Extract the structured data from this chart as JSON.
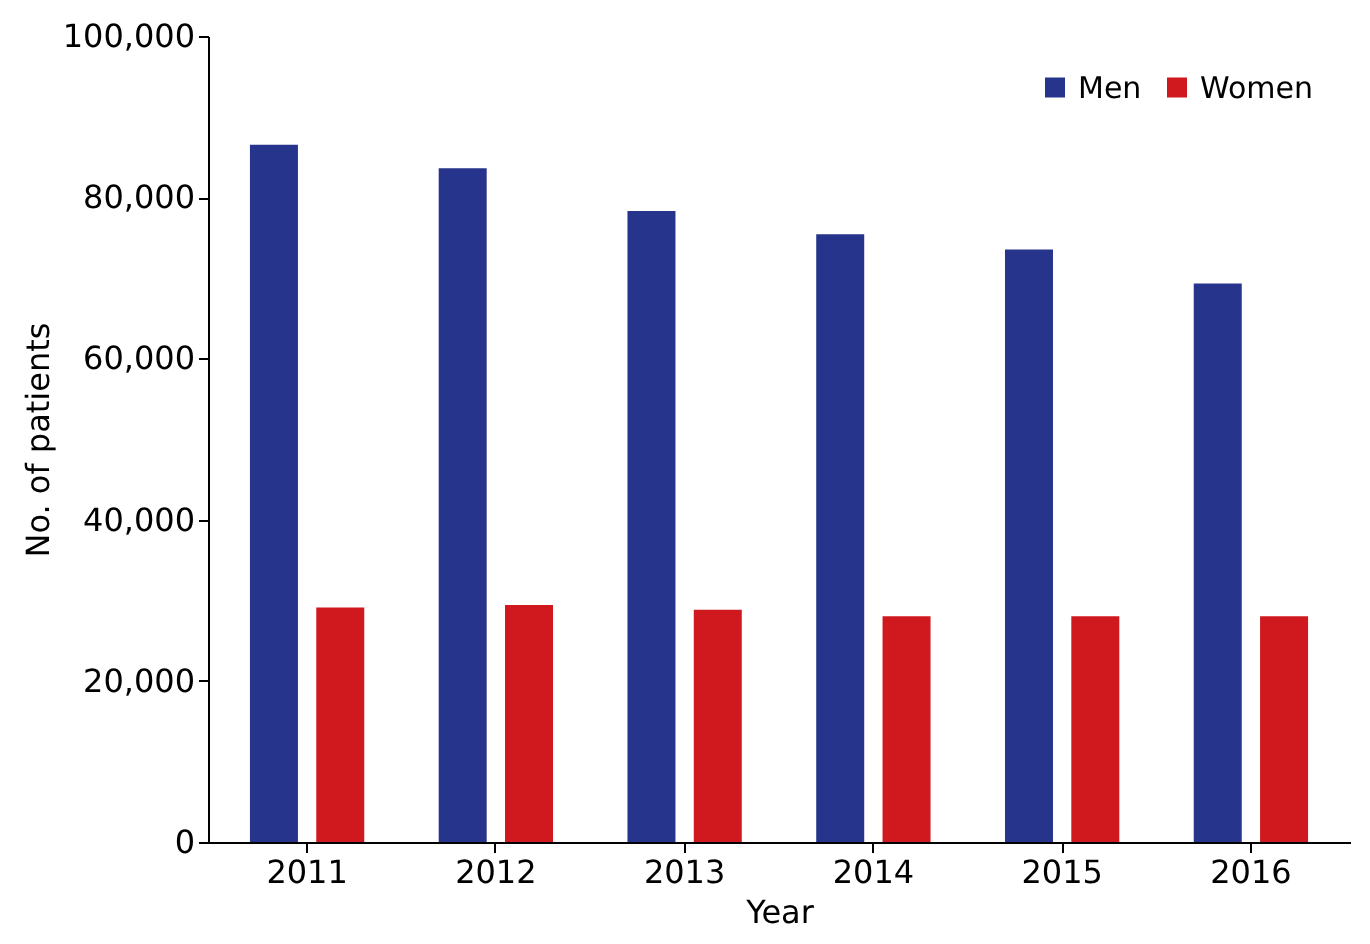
{
  "chart_data": {
    "type": "bar",
    "xlabel": "Year",
    "ylabel": "No. of patients",
    "categories": [
      "2011",
      "2012",
      "2013",
      "2014",
      "2015",
      "2016"
    ],
    "series": [
      {
        "name": "Men",
        "color": "#27348b",
        "values": [
          86500,
          83600,
          78300,
          75400,
          73500,
          69300
        ]
      },
      {
        "name": "Women",
        "color": "#d0191f",
        "values": [
          29100,
          29400,
          28800,
          28000,
          28000,
          28000
        ]
      }
    ],
    "ylim": [
      0,
      100000
    ],
    "yticks": [
      0,
      {
        "value": 20000,
        "label": "20,000"
      },
      {
        "value": 40000,
        "label": "40,000"
      },
      {
        "value": 60000,
        "label": "60,000"
      },
      {
        "value": 80000,
        "label": "80,000"
      },
      {
        "value": 100000,
        "label": "100,000"
      }
    ],
    "grid": false,
    "legend": "top right"
  }
}
